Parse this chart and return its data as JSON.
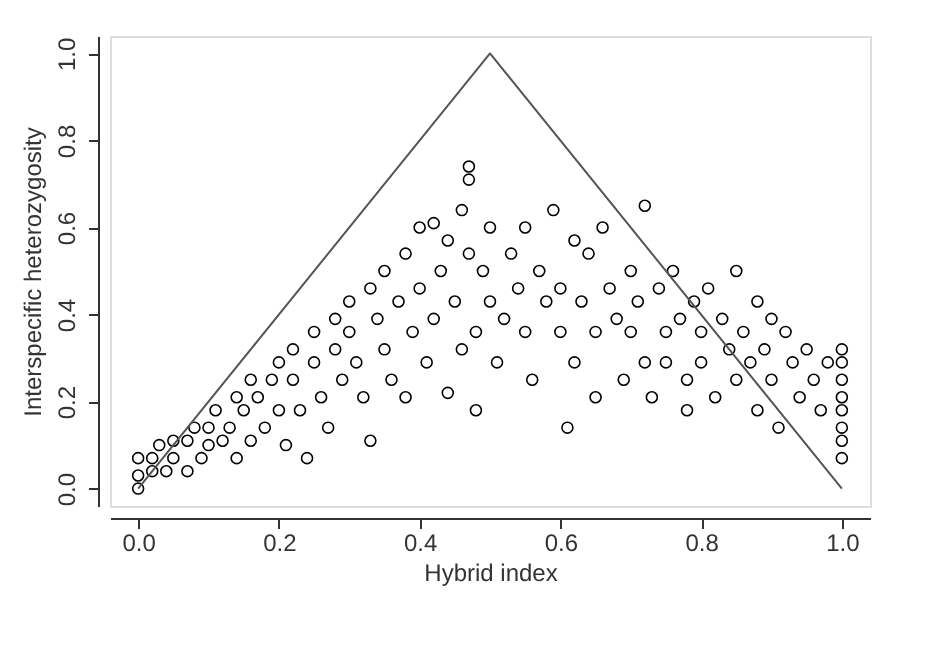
{
  "chart_data": {
    "type": "scatter",
    "xlabel": "Hybrid index",
    "ylabel": "Interspecific heterozygosity",
    "xlim": [
      -0.04,
      1.04
    ],
    "ylim": [
      -0.04,
      1.04
    ],
    "xticks": [
      {
        "value": 0,
        "label": "0.0"
      },
      0.2,
      0.4,
      0.6,
      0.8,
      {
        "value": 1,
        "label": "1.0"
      }
    ],
    "yticks": [
      {
        "value": 0,
        "label": "0.0"
      },
      0.2,
      0.4,
      0.6,
      0.8,
      {
        "value": 1,
        "label": "1.0"
      }
    ],
    "grid": false,
    "series": [
      {
        "marker": "circle",
        "color": "#000000",
        "x": [
          0,
          0,
          0,
          0.02,
          0.02,
          0.03,
          0.04,
          0.05,
          0.05,
          0.07,
          0.07,
          0.08,
          0.09,
          0.1,
          0.1,
          0.11,
          0.12,
          0.13,
          0.14,
          0.14,
          0.15,
          0.16,
          0.16,
          0.17,
          0.18,
          0.19,
          0.2,
          0.2,
          0.21,
          0.22,
          0.22,
          0.23,
          0.24,
          0.25,
          0.25,
          0.26,
          0.27,
          0.28,
          0.28,
          0.29,
          0.3,
          0.3,
          0.31,
          0.32,
          0.33,
          0.33,
          0.34,
          0.35,
          0.35,
          0.36,
          0.37,
          0.38,
          0.38,
          0.39,
          0.4,
          0.4,
          0.41,
          0.42,
          0.42,
          0.43,
          0.44,
          0.44,
          0.45,
          0.46,
          0.46,
          0.47,
          0.48,
          0.48,
          0.49,
          0.5,
          0.5,
          0.51,
          0.47,
          0.47,
          0.52,
          0.53,
          0.54,
          0.55,
          0.55,
          0.56,
          0.57,
          0.58,
          0.59,
          0.6,
          0.6,
          0.61,
          0.62,
          0.62,
          0.63,
          0.64,
          0.65,
          0.65,
          0.66,
          0.67,
          0.68,
          0.69,
          0.7,
          0.7,
          0.71,
          0.72,
          0.72,
          0.73,
          0.74,
          0.75,
          0.75,
          0.76,
          0.77,
          0.78,
          0.78,
          0.79,
          0.8,
          0.8,
          0.81,
          0.82,
          0.83,
          0.84,
          0.85,
          0.85,
          0.86,
          0.87,
          0.88,
          0.88,
          0.89,
          0.9,
          0.9,
          0.91,
          0.92,
          0.93,
          0.94,
          0.95,
          0.96,
          0.97,
          0.98,
          1,
          1,
          1,
          1,
          1,
          1,
          1,
          1
        ],
        "values": [
          0,
          0.03,
          0.07,
          0.04,
          0.07,
          0.1,
          0.04,
          0.07,
          0.11,
          0.04,
          0.11,
          0.14,
          0.07,
          0.1,
          0.14,
          0.18,
          0.11,
          0.14,
          0.21,
          0.07,
          0.18,
          0.25,
          0.11,
          0.21,
          0.14,
          0.25,
          0.29,
          0.18,
          0.1,
          0.32,
          0.25,
          0.18,
          0.07,
          0.36,
          0.29,
          0.21,
          0.14,
          0.39,
          0.32,
          0.25,
          0.43,
          0.36,
          0.29,
          0.21,
          0.46,
          0.11,
          0.39,
          0.5,
          0.32,
          0.25,
          0.43,
          0.54,
          0.21,
          0.36,
          0.6,
          0.46,
          0.29,
          0.61,
          0.39,
          0.5,
          0.22,
          0.57,
          0.43,
          0.64,
          0.32,
          0.54,
          0.36,
          0.18,
          0.5,
          0.6,
          0.43,
          0.29,
          0.74,
          0.71,
          0.39,
          0.54,
          0.46,
          0.36,
          0.6,
          0.25,
          0.5,
          0.43,
          0.64,
          0.36,
          0.46,
          0.14,
          0.57,
          0.29,
          0.43,
          0.54,
          0.36,
          0.21,
          0.6,
          0.46,
          0.39,
          0.25,
          0.5,
          0.36,
          0.43,
          0.65,
          0.29,
          0.21,
          0.46,
          0.36,
          0.29,
          0.5,
          0.39,
          0.25,
          0.18,
          0.43,
          0.36,
          0.29,
          0.46,
          0.21,
          0.39,
          0.32,
          0.5,
          0.25,
          0.36,
          0.29,
          0.43,
          0.18,
          0.32,
          0.39,
          0.25,
          0.14,
          0.36,
          0.29,
          0.21,
          0.32,
          0.25,
          0.18,
          0.29,
          0.07,
          0.11,
          0.14,
          0.18,
          0.21,
          0.25,
          0.29,
          0.32
        ]
      },
      {
        "type": "line",
        "marker": "none",
        "line_style": "solid",
        "color": "#555555",
        "x": [
          0,
          0.5,
          1
        ],
        "values": [
          0,
          1,
          0
        ]
      }
    ]
  }
}
